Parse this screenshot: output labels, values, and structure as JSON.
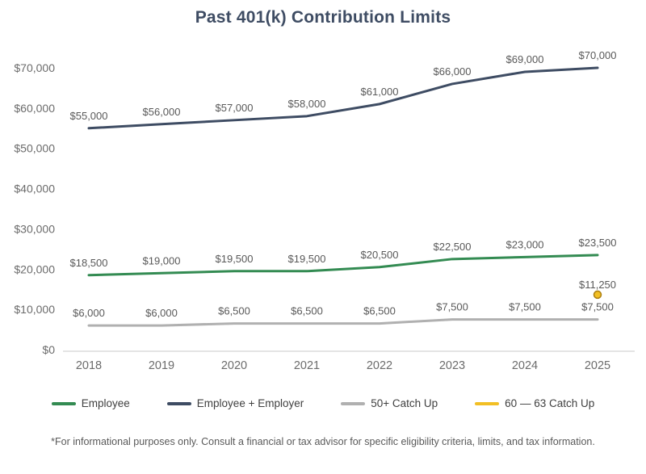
{
  "footnote": "*For informational purposes only. Consult a financial or tax advisor for specific eligibility criteria, limits, and tax information.",
  "colors": {
    "title": "#3e4c63",
    "employee_green": "#338b52",
    "employer_navy": "#3e4c63",
    "catchup_gray": "#b0b0b0",
    "catchup_gold": "#f2bf24",
    "catchup_gold_border": "#aa7d0f",
    "data_label": "#595959",
    "axis_label": "#6b6b6b",
    "axis_line": "#dcdcdc"
  },
  "chart_data": {
    "type": "line",
    "title": "Past 401(k) Contribution Limits",
    "x": [
      "2018",
      "2019",
      "2020",
      "2021",
      "2022",
      "2023",
      "2024",
      "2025"
    ],
    "series": [
      {
        "name": "Employee",
        "color_key": "employee_green",
        "style": "line",
        "values": [
          18500,
          19000,
          19500,
          19500,
          20500,
          22500,
          23000,
          23500
        ],
        "labels": [
          "$18,500",
          "$19,000",
          "$19,500",
          "$19,500",
          "$20,500",
          "$22,500",
          "$23,000",
          "$23,500"
        ]
      },
      {
        "name": "Employee + Employer",
        "color_key": "employer_navy",
        "style": "line",
        "values": [
          55000,
          56000,
          57000,
          58000,
          61000,
          66000,
          69000,
          70000
        ],
        "labels": [
          "$55,000",
          "$56,000",
          "$57,000",
          "$58,000",
          "$61,000",
          "$66,000",
          "$69,000",
          "$70,000"
        ]
      },
      {
        "name": "50+ Catch Up",
        "color_key": "catchup_gray",
        "style": "line",
        "values": [
          6000,
          6000,
          6500,
          6500,
          6500,
          7500,
          7500,
          7500
        ],
        "labels": [
          "$6,000",
          "$6,000",
          "$6,500",
          "$6,500",
          "$6,500",
          "$7,500",
          "$7,500",
          "$7,500"
        ]
      },
      {
        "name": "60 — 63 Catch Up",
        "color_key": "catchup_gold",
        "style": "point",
        "values": [
          null,
          null,
          null,
          null,
          null,
          null,
          null,
          11250
        ],
        "labels": [
          null,
          null,
          null,
          null,
          null,
          null,
          null,
          "$11,250"
        ]
      }
    ],
    "y_axis": {
      "range": [
        0,
        70000
      ],
      "tick_values": [
        0,
        10000,
        20000,
        30000,
        40000,
        50000,
        60000,
        70000
      ],
      "tick_labels": [
        "$0",
        "$10,000",
        "$20,000",
        "$30,000",
        "$40,000",
        "$50,000",
        "$60,000",
        "$70,000"
      ]
    },
    "grid": false,
    "legend_position": "bottom"
  }
}
